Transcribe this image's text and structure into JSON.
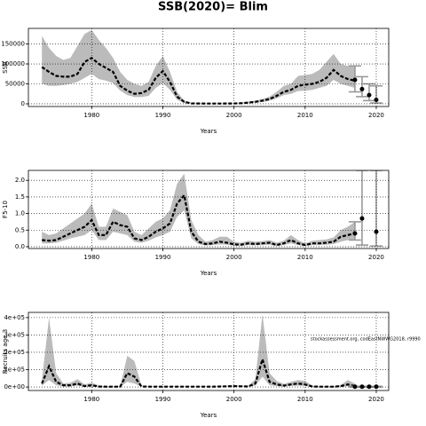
{
  "title": "SSB(2020)= Blim",
  "chart_data": [
    {
      "type": "line",
      "ylabel": "SSB",
      "xlabel": "Years",
      "xlim": [
        1971.1,
        2021.75
      ],
      "xticks": [
        1980,
        1990,
        2000,
        2010,
        2020
      ],
      "ylim": [
        -6700,
        189000
      ],
      "yticks": [
        0,
        50000,
        100000,
        150000
      ],
      "grid": true,
      "color": "#000000",
      "band_color": "#bbbbbb",
      "forecast_color": "#999999",
      "x": [
        1973,
        1974,
        1975,
        1976,
        1977,
        1978,
        1979,
        1980,
        1981,
        1982,
        1983,
        1984,
        1985,
        1986,
        1987,
        1988,
        1989,
        1990,
        1991,
        1992,
        1993,
        1994,
        1995,
        1996,
        1997,
        1998,
        1999,
        2000,
        2001,
        2002,
        2003,
        2004,
        2005,
        2006,
        2007,
        2008,
        2009,
        2010,
        2011,
        2012,
        2013,
        2014,
        2015,
        2016,
        2017
      ],
      "values": [
        92000,
        80000,
        70000,
        68000,
        68000,
        75000,
        105000,
        115000,
        100000,
        90000,
        80000,
        45000,
        33000,
        25000,
        27000,
        35000,
        65000,
        82000,
        55000,
        18000,
        5000,
        1000,
        800,
        700,
        700,
        700,
        800,
        900,
        1500,
        3000,
        5000,
        8000,
        12000,
        20000,
        30000,
        35000,
        45000,
        48000,
        50000,
        55000,
        65000,
        85000,
        70000,
        62000,
        58000
      ],
      "upper": [
        170000,
        140000,
        120000,
        110000,
        115000,
        145000,
        175000,
        185000,
        160000,
        140000,
        115000,
        80000,
        60000,
        50000,
        45000,
        55000,
        95000,
        120000,
        80000,
        30000,
        8000,
        3000,
        2000,
        1500,
        1500,
        1500,
        1800,
        2000,
        3000,
        5500,
        8000,
        12000,
        18000,
        30000,
        45000,
        50000,
        70000,
        72000,
        75000,
        85000,
        105000,
        125000,
        100000,
        95000,
        95000
      ],
      "lower": [
        50000,
        45000,
        45000,
        47000,
        50000,
        55000,
        65000,
        75000,
        62000,
        58000,
        52000,
        33000,
        22000,
        17000,
        17000,
        20000,
        40000,
        52000,
        35000,
        10000,
        2000,
        500,
        300,
        300,
        300,
        300,
        400,
        500,
        800,
        1500,
        3000,
        4500,
        8000,
        14000,
        22000,
        25000,
        32000,
        33000,
        35000,
        40000,
        45000,
        60000,
        50000,
        45000,
        40000
      ],
      "forecast": {
        "x": [
          2017,
          2018,
          2019,
          2020
        ],
        "values": [
          60000,
          37000,
          22000,
          10000
        ],
        "lower": [
          30000,
          18000,
          8000,
          2000
        ],
        "upper": [
          95000,
          68000,
          50000,
          45000
        ]
      }
    },
    {
      "type": "line",
      "ylabel": "F5-10",
      "xlabel": "Years",
      "xlim": [
        1971.1,
        2021.75
      ],
      "xticks": [
        1980,
        1990,
        2000,
        2010,
        2020
      ],
      "ylim": [
        -0.055,
        2.3
      ],
      "yticks": [
        {
          "value": 0,
          "label": "0.0"
        },
        {
          "value": 0.5,
          "label": "0.5"
        },
        {
          "value": 1,
          "label": "1.0"
        },
        {
          "value": 1.5,
          "label": "1.5"
        },
        {
          "value": 2,
          "label": "2.0"
        }
      ],
      "grid": true,
      "color": "#000000",
      "band_color": "#bbbbbb",
      "forecast_color": "#999999",
      "x": [
        1973,
        1974,
        1975,
        1976,
        1977,
        1978,
        1979,
        1980,
        1981,
        1982,
        1983,
        1984,
        1985,
        1986,
        1987,
        1988,
        1989,
        1990,
        1991,
        1992,
        1993,
        1994,
        1995,
        1996,
        1997,
        1998,
        1999,
        2000,
        2001,
        2002,
        2003,
        2004,
        2005,
        2006,
        2007,
        2008,
        2009,
        2010,
        2011,
        2012,
        2013,
        2014,
        2015,
        2016,
        2017
      ],
      "values": [
        0.2,
        0.18,
        0.2,
        0.3,
        0.4,
        0.5,
        0.6,
        0.8,
        0.35,
        0.35,
        0.75,
        0.65,
        0.6,
        0.25,
        0.2,
        0.3,
        0.45,
        0.55,
        0.7,
        1.3,
        1.55,
        0.45,
        0.15,
        0.08,
        0.1,
        0.15,
        0.12,
        0.07,
        0.06,
        0.1,
        0.08,
        0.1,
        0.12,
        0.05,
        0.1,
        0.2,
        0.1,
        0.05,
        0.1,
        0.1,
        0.12,
        0.15,
        0.3,
        0.35,
        0.4
      ],
      "upper": [
        0.45,
        0.35,
        0.4,
        0.55,
        0.7,
        0.85,
        1.0,
        1.3,
        0.6,
        0.6,
        1.15,
        1.05,
        0.95,
        0.45,
        0.35,
        0.55,
        0.75,
        0.85,
        1.1,
        1.9,
        2.2,
        0.8,
        0.35,
        0.15,
        0.2,
        0.3,
        0.3,
        0.15,
        0.12,
        0.18,
        0.15,
        0.17,
        0.2,
        0.12,
        0.18,
        0.35,
        0.2,
        0.1,
        0.18,
        0.2,
        0.22,
        0.28,
        0.5,
        0.6,
        0.75
      ],
      "lower": [
        0.1,
        0.1,
        0.12,
        0.18,
        0.25,
        0.3,
        0.35,
        0.5,
        0.2,
        0.2,
        0.45,
        0.4,
        0.35,
        0.15,
        0.12,
        0.18,
        0.28,
        0.35,
        0.45,
        0.9,
        1.1,
        0.25,
        0.08,
        0.04,
        0.05,
        0.07,
        0.06,
        0.03,
        0.03,
        0.05,
        0.04,
        0.05,
        0.06,
        0.02,
        0.05,
        0.1,
        0.05,
        0.02,
        0.05,
        0.05,
        0.06,
        0.08,
        0.15,
        0.2,
        0.2
      ],
      "forecast": {
        "x": [
          2017,
          2018,
          2020
        ],
        "values": [
          0.4,
          0.85,
          0.45
        ],
        "lower": [
          0.2,
          0.05,
          0.02
        ],
        "upper": [
          0.75,
          2.3,
          2.3
        ]
      }
    },
    {
      "type": "line",
      "ylabel": "Recruits age 3",
      "xlabel": "Years",
      "annotation": "stockassessment.org, codEastNWWG2018, r9990",
      "xlim": [
        1971.1,
        2021.75
      ],
      "xticks": [
        1980,
        1990,
        2000,
        2010,
        2020
      ],
      "ylim": [
        -20000,
        430000
      ],
      "yticks": [
        {
          "value": 0,
          "label": "0e+00"
        },
        {
          "value": 100000,
          "label": "1e+05"
        },
        {
          "value": 200000,
          "label": "2e+05"
        },
        {
          "value": 300000,
          "label": "3e+05"
        },
        {
          "value": 400000,
          "label": "4e+05"
        }
      ],
      "grid": true,
      "color": "#000000",
      "band_color": "#bbbbbb",
      "forecast_color": "#999999",
      "x": [
        1973,
        1974,
        1975,
        1976,
        1977,
        1978,
        1979,
        1980,
        1981,
        1982,
        1983,
        1984,
        1985,
        1986,
        1987,
        1988,
        1989,
        1990,
        1991,
        1992,
        1993,
        1994,
        1995,
        1996,
        1997,
        1998,
        1999,
        2000,
        2001,
        2002,
        2003,
        2004,
        2005,
        2006,
        2007,
        2008,
        2009,
        2010,
        2011,
        2012,
        2013,
        2014,
        2015,
        2016,
        2017
      ],
      "values": [
        20000,
        120000,
        30000,
        10000,
        10000,
        20000,
        5000,
        10000,
        3000,
        2000,
        2000,
        2000,
        80000,
        60000,
        3000,
        2000,
        2000,
        2000,
        2000,
        2000,
        2000,
        2000,
        2000,
        2000,
        2000,
        3000,
        4000,
        5000,
        4000,
        3000,
        20000,
        160000,
        30000,
        15000,
        8000,
        15000,
        20000,
        15000,
        3000,
        2000,
        2000,
        2000,
        5000,
        15000,
        5000
      ],
      "upper": [
        40000,
        400000,
        80000,
        20000,
        25000,
        45000,
        15000,
        25000,
        8000,
        5000,
        5000,
        5000,
        180000,
        150000,
        8000,
        5000,
        5000,
        5000,
        5000,
        5000,
        5000,
        5000,
        5000,
        5000,
        5000,
        7000,
        8000,
        10000,
        9000,
        7000,
        45000,
        420000,
        80000,
        35000,
        18000,
        30000,
        40000,
        35000,
        8000,
        5000,
        5000,
        5000,
        12000,
        40000,
        20000
      ],
      "lower": [
        8000,
        40000,
        10000,
        3000,
        3000,
        8000,
        1500,
        3000,
        1000,
        500,
        500,
        500,
        30000,
        20000,
        1000,
        500,
        500,
        500,
        500,
        500,
        500,
        500,
        500,
        500,
        500,
        1000,
        1500,
        2000,
        1500,
        1000,
        8000,
        60000,
        10000,
        5000,
        3000,
        6000,
        8000,
        6000,
        1000,
        500,
        500,
        500,
        1500,
        5000,
        1000
      ],
      "forecast": {
        "x": [
          2017,
          2018,
          2019,
          2020
        ],
        "values": [
          2000,
          2000,
          2000,
          2000
        ],
        "lower": [
          0,
          0,
          0,
          0
        ],
        "upper": [
          4000,
          4000,
          4000,
          4000
        ]
      }
    }
  ]
}
